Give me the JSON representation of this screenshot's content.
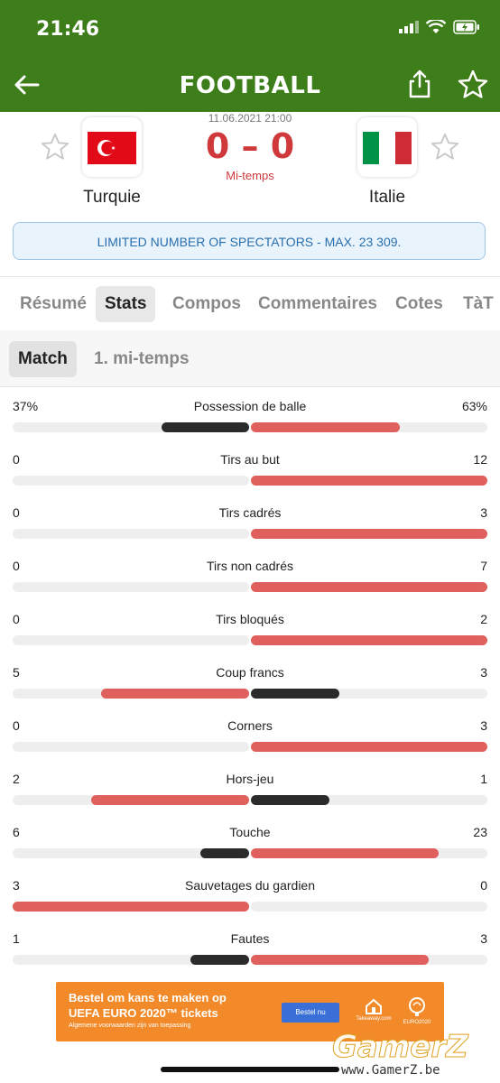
{
  "status_bar": {
    "time": "21:46"
  },
  "header": {
    "title": "FOOTBALL"
  },
  "match": {
    "datetime": "11.06.2021 21:00",
    "score": "0 – 0",
    "status": "Mi-temps",
    "home": {
      "name": "Turquie",
      "flag_colors": [
        "#e30a17",
        "#ffffff"
      ]
    },
    "away": {
      "name": "Italie",
      "flag_colors": [
        "#009246",
        "#ffffff",
        "#ce2b37"
      ]
    }
  },
  "notice": "LIMITED NUMBER OF SPECTATORS - MAX. 23 309.",
  "tabs": [
    {
      "label": "Résumé"
    },
    {
      "label": "Stats",
      "active": true
    },
    {
      "label": "Compos"
    },
    {
      "label": "Commentaires"
    },
    {
      "label": "Cotes"
    },
    {
      "label": "TàT"
    }
  ],
  "subtabs": [
    {
      "label": "Match",
      "active": true
    },
    {
      "label": "1. mi-temps"
    }
  ],
  "colors": {
    "header_bg": "#3d7d1a",
    "accent_red": "#e0605e",
    "dark_bar": "#2b2b2b",
    "score_red": "#d0393b"
  },
  "stats": [
    {
      "label": "Possession de balle",
      "home": "37%",
      "away": "63%",
      "home_val": 37,
      "away_val": 63
    },
    {
      "label": "Tirs au but",
      "home": "0",
      "away": "12",
      "home_val": 0,
      "away_val": 12
    },
    {
      "label": "Tirs cadrés",
      "home": "0",
      "away": "3",
      "home_val": 0,
      "away_val": 3
    },
    {
      "label": "Tirs non cadrés",
      "home": "0",
      "away": "7",
      "home_val": 0,
      "away_val": 7
    },
    {
      "label": "Tirs bloqués",
      "home": "0",
      "away": "2",
      "home_val": 0,
      "away_val": 2
    },
    {
      "label": "Coup francs",
      "home": "5",
      "away": "3",
      "home_val": 5,
      "away_val": 3
    },
    {
      "label": "Corners",
      "home": "0",
      "away": "3",
      "home_val": 0,
      "away_val": 3
    },
    {
      "label": "Hors-jeu",
      "home": "2",
      "away": "1",
      "home_val": 2,
      "away_val": 1
    },
    {
      "label": "Touche",
      "home": "6",
      "away": "23",
      "home_val": 6,
      "away_val": 23
    },
    {
      "label": "Sauvetages du gardien",
      "home": "3",
      "away": "0",
      "home_val": 3,
      "away_val": 0
    },
    {
      "label": "Fautes",
      "home": "1",
      "away": "3",
      "home_val": 1,
      "away_val": 3
    }
  ],
  "ad": {
    "line1": "Bestel om kans te maken op",
    "line2": "UEFA EURO 2020™ tickets",
    "line3": "Algemene voorwaarden zijn van toepassing",
    "button": "Bestel nu",
    "logo1": "Takeaway.com",
    "logo2": "EURO2020"
  },
  "watermark": {
    "brand": "GamerZ",
    "url": "www.GamerZ.be"
  }
}
